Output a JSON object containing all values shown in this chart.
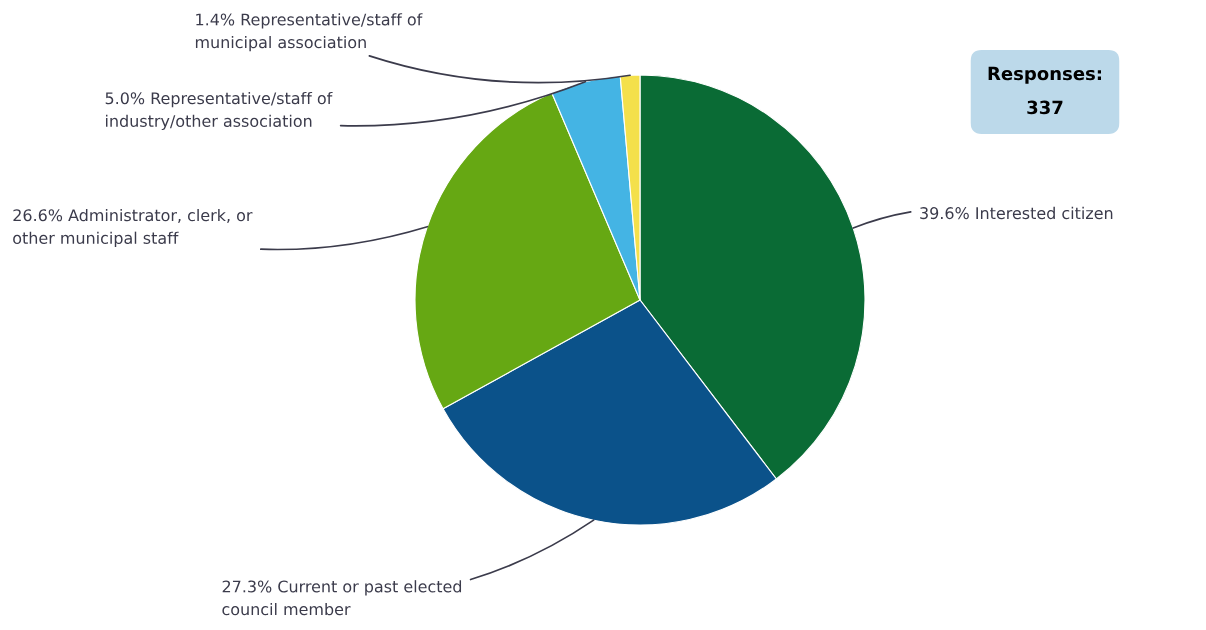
{
  "chart_data": {
    "type": "pie",
    "categories": [
      "Interested citizen",
      "Current or past elected\ncouncil member",
      "Administrator, clerk, or\nother municipal staff",
      "Representative/staff of\nindustry/other association",
      "Representative/staff of\nmunicipal association"
    ],
    "values": [
      39.6,
      27.3,
      26.6,
      5.0,
      1.4
    ],
    "value_labels": [
      "39.6%",
      "27.3%",
      "26.6%",
      "5.0%",
      "1.4%"
    ],
    "colors": [
      "#0a6b35",
      "#0b528a",
      "#66a813",
      "#44b4e4",
      "#f4e04b"
    ],
    "annotations": [
      "Responses:\n337"
    ],
    "legend": false
  }
}
